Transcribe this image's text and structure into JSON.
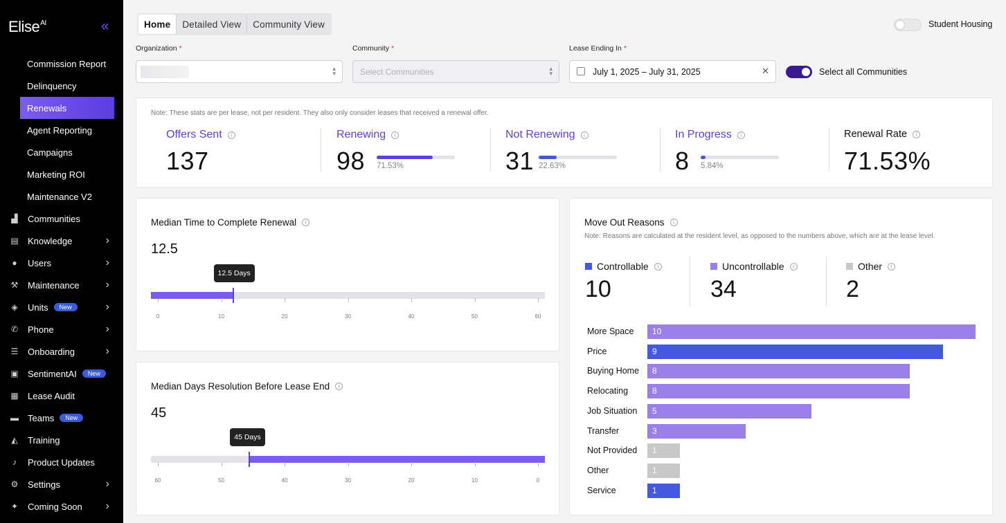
{
  "brand": {
    "name": "Elise",
    "superscript": "AI"
  },
  "sidebar": {
    "sub_items": [
      {
        "label": "Commission Report"
      },
      {
        "label": "Delinquency"
      },
      {
        "label": "Renewals",
        "active": true
      },
      {
        "label": "Agent Reporting"
      },
      {
        "label": "Campaigns"
      },
      {
        "label": "Marketing ROI"
      },
      {
        "label": "Maintenance V2"
      }
    ],
    "items": [
      {
        "label": "Communities",
        "icon": "building-icon"
      },
      {
        "label": "Knowledge",
        "icon": "book-icon",
        "chevron": true
      },
      {
        "label": "Users",
        "icon": "user-icon",
        "chevron": true
      },
      {
        "label": "Maintenance",
        "icon": "hammer-icon",
        "chevron": true
      },
      {
        "label": "Units",
        "icon": "cube-icon",
        "chevron": true,
        "badge": "New"
      },
      {
        "label": "Phone",
        "icon": "phone-icon",
        "chevron": true
      },
      {
        "label": "Onboarding",
        "icon": "checklist-icon",
        "chevron": true
      },
      {
        "label": "SentimentAI",
        "icon": "sentiment-icon",
        "badge": "New"
      },
      {
        "label": "Lease Audit",
        "icon": "audit-icon"
      },
      {
        "label": "Teams",
        "icon": "briefcase-icon",
        "badge": "New"
      },
      {
        "label": "Training",
        "icon": "graduation-icon"
      },
      {
        "label": "Product Updates",
        "icon": "bell-icon"
      },
      {
        "label": "Settings",
        "icon": "gear-icon",
        "chevron": true
      },
      {
        "label": "Coming Soon",
        "icon": "sparkle-icon",
        "chevron": true
      }
    ]
  },
  "tabs": [
    {
      "label": "Home",
      "active": true
    },
    {
      "label": "Detailed View"
    },
    {
      "label": "Community View"
    }
  ],
  "student_housing": {
    "label": "Student Housing",
    "on": false
  },
  "filters": {
    "organization_label": "Organization",
    "community_label": "Community",
    "community_placeholder": "Select Communities",
    "lease_label": "Lease Ending In",
    "lease_value": "July 1, 2025 – July 31, 2025",
    "select_all_label": "Select all Communities",
    "required_mark": "*"
  },
  "stats": {
    "note": "Note: These stats are per lease, not per resident. They also only consider leases that received a renewal offer.",
    "offers_sent": {
      "title": "Offers Sent",
      "value": "137"
    },
    "renewing": {
      "title": "Renewing",
      "value": "98",
      "pct": "71.53%",
      "fraction": 0.7153
    },
    "not_renewing": {
      "title": "Not Renewing",
      "value": "31",
      "pct": "22.63%",
      "fraction": 0.2263
    },
    "in_progress": {
      "title": "In Progress",
      "value": "8",
      "pct": "5.84%",
      "fraction": 0.0584
    },
    "renewal_rate": {
      "title": "Renewal Rate",
      "value": "71.53%"
    }
  },
  "median_complete": {
    "title": "Median Time to Complete Renewal",
    "value": "12.5",
    "tooltip": "12.5 Days",
    "axis": [
      "0",
      "10",
      "20",
      "30",
      "40",
      "50",
      "60"
    ],
    "max": 60,
    "data_value": 12.5
  },
  "median_resolution": {
    "title": "Median Days Resolution Before Lease End",
    "value": "45",
    "tooltip": "45 Days",
    "axis": [
      "60",
      "50",
      "40",
      "30",
      "20",
      "10",
      "0"
    ],
    "max": 60,
    "data_value": 45
  },
  "move_out": {
    "title": "Move Out Reasons",
    "note": "Note: Reasons are calculated at the resident level, as opposed to the numbers above, which are at the lease level.",
    "categories": [
      {
        "label": "Controllable",
        "value": "10",
        "color": "#4458e0"
      },
      {
        "label": "Uncontrollable",
        "value": "34",
        "color": "#9b7fe8"
      },
      {
        "label": "Other",
        "value": "2",
        "color": "#c8c8c8"
      }
    ],
    "reasons": [
      {
        "label": "More Space",
        "value": 10,
        "color": "#9b7fe8"
      },
      {
        "label": "Price",
        "value": 9,
        "color": "#4458e0"
      },
      {
        "label": "Buying Home",
        "value": 8,
        "color": "#9b7fe8"
      },
      {
        "label": "Relocating",
        "value": 8,
        "color": "#9b7fe8"
      },
      {
        "label": "Job Situation",
        "value": 5,
        "color": "#9b7fe8"
      },
      {
        "label": "Transfer",
        "value": 3,
        "color": "#9b7fe8"
      },
      {
        "label": "Not Provided",
        "value": 1,
        "color": "#c8c8c8"
      },
      {
        "label": "Other",
        "value": 1,
        "color": "#c8c8c8"
      },
      {
        "label": "Service",
        "value": 1,
        "color": "#4458e0"
      }
    ]
  },
  "colors": {
    "accent": "#5b3fe0",
    "bar_purple": "#7b5cf0",
    "blue": "#4458e0"
  }
}
